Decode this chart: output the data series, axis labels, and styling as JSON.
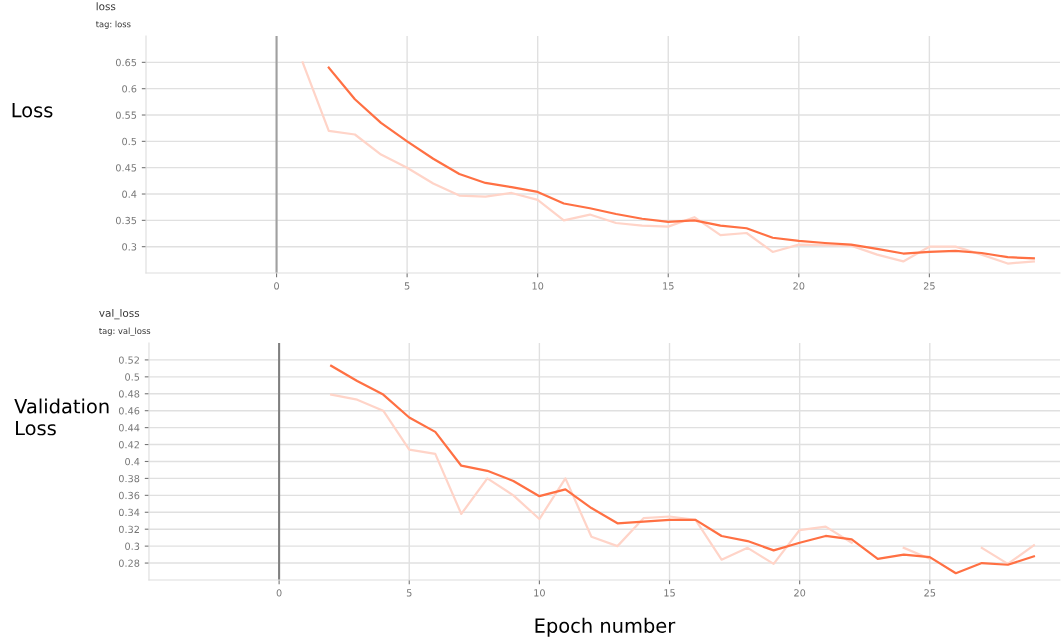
{
  "chart_data": [
    {
      "type": "line",
      "title": "loss",
      "subtitle": "tag: loss",
      "ylabel": "Loss",
      "x": [
        1,
        2,
        3,
        4,
        5,
        6,
        7,
        8,
        9,
        10,
        11,
        12,
        13,
        14,
        15,
        16,
        17,
        18,
        19,
        20,
        21,
        22,
        23,
        24,
        25,
        26,
        27,
        28,
        29
      ],
      "series": [
        {
          "color": "#ffd4c8",
          "values": [
            0.65,
            0.52,
            0.513,
            0.475,
            0.45,
            0.42,
            0.397,
            0.395,
            0.402,
            0.389,
            0.35,
            0.361,
            0.345,
            0.34,
            0.338,
            0.356,
            0.322,
            0.326,
            0.29,
            0.304,
            0.303,
            0.302,
            0.285,
            0.272,
            0.3,
            0.3,
            0.285,
            0.268,
            0.272
          ]
        },
        {
          "color": "#ff7043",
          "values": [
            null,
            0.64,
            0.58,
            0.535,
            0.5,
            0.467,
            0.438,
            0.421,
            0.413,
            0.404,
            0.382,
            0.373,
            0.362,
            0.353,
            0.347,
            0.35,
            0.34,
            0.335,
            0.317,
            0.311,
            0.307,
            0.304,
            0.296,
            0.287,
            0.29,
            0.292,
            0.288,
            0.28,
            0.278
          ]
        }
      ],
      "xlim": [
        -5,
        30
      ],
      "xticks": [
        0,
        5,
        10,
        15,
        20,
        25
      ],
      "ylim": [
        0.25,
        0.7
      ],
      "yticks": [
        0.3,
        0.35,
        0.4,
        0.45,
        0.5,
        0.55,
        0.6,
        0.65
      ],
      "ref_lines": [
        {
          "axis": "x",
          "value": 0,
          "color": "#a0a0a0"
        }
      ],
      "grid": true,
      "line_style": "solid"
    },
    {
      "type": "line",
      "title": "val_loss",
      "subtitle": "tag: val_loss",
      "ylabel": "Validation\nLoss",
      "xlabel": "Epoch number",
      "x": [
        2,
        3,
        4,
        5,
        6,
        7,
        8,
        9,
        10,
        11,
        12,
        13,
        14,
        15,
        16,
        17,
        18,
        19,
        20,
        21,
        22,
        23,
        24,
        25,
        26,
        27,
        28,
        29
      ],
      "series": [
        {
          "color": "#ffd4c8",
          "values": [
            0.479,
            0.473,
            0.46,
            0.414,
            0.409,
            0.338,
            0.38,
            0.36,
            0.332,
            0.38,
            0.311,
            0.3,
            0.333,
            0.335,
            0.331,
            0.284,
            0.298,
            0.279,
            0.319,
            0.323,
            0.304,
            null,
            0.298,
            0.285,
            null,
            0.298,
            0.279,
            0.301
          ]
        },
        {
          "color": "#ff7043",
          "values": [
            0.513,
            0.495,
            0.479,
            0.452,
            0.435,
            0.395,
            0.389,
            0.377,
            0.359,
            0.367,
            0.345,
            0.327,
            0.329,
            0.331,
            0.331,
            0.312,
            0.306,
            0.295,
            0.304,
            0.312,
            0.308,
            0.285,
            0.29,
            0.287,
            0.268,
            0.28,
            0.278,
            0.288
          ]
        }
      ],
      "xlim": [
        -5,
        30
      ],
      "xticks": [
        0,
        5,
        10,
        15,
        20,
        25
      ],
      "ylim": [
        0.26,
        0.54
      ],
      "yticks": [
        0.28,
        0.3,
        0.32,
        0.34,
        0.36,
        0.38,
        0.4,
        0.42,
        0.44,
        0.46,
        0.48,
        0.5,
        0.52
      ],
      "ref_lines": [
        {
          "axis": "x",
          "value": 0,
          "color": "#808080"
        }
      ],
      "grid": true,
      "line_style": "solid"
    }
  ]
}
